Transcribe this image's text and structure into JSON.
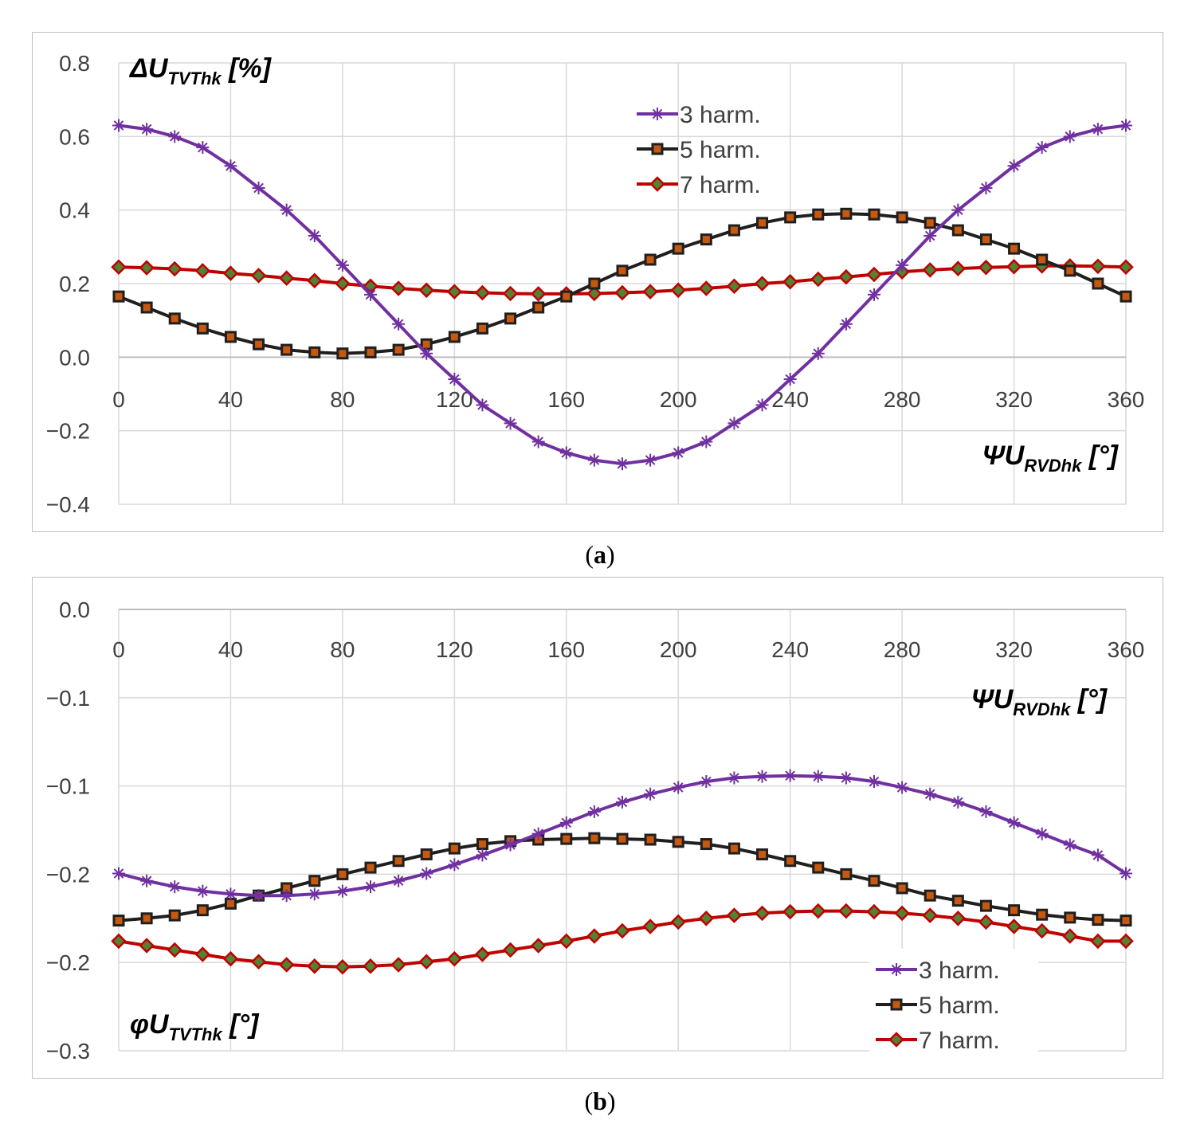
{
  "captions": {
    "a": "a",
    "b": "b"
  },
  "colors": {
    "h3": "#7030a0",
    "h5": "#1f1f1f",
    "h5_fill": "#c65911",
    "h7": "#c00000",
    "h7_fill": "#548235",
    "grid": "#d9d9d9"
  },
  "chart_data": [
    {
      "id": "a",
      "type": "line",
      "title": "",
      "ylabel_main": "ΔU",
      "ylabel_sub": "TVThk",
      "ylabel_unit": " [%]",
      "xlabel_main": "ΨU",
      "xlabel_sub": "RVDhk",
      "xlabel_unit": " [°]",
      "xlim": [
        0,
        360
      ],
      "ylim": [
        -0.4,
        0.8
      ],
      "x_ticks": [
        "0",
        "40",
        "80",
        "120",
        "160",
        "200",
        "240",
        "280",
        "320",
        "360"
      ],
      "y_ticks": [
        "0.8",
        "0.6",
        "0.4",
        "0.2",
        "0.0",
        "−0.2",
        "−0.4"
      ],
      "legend": [
        "3 harm.",
        "5 harm.",
        "7 harm."
      ],
      "legend_position": "top-center",
      "x": [
        0,
        10,
        20,
        30,
        40,
        50,
        60,
        70,
        80,
        90,
        100,
        110,
        120,
        130,
        140,
        150,
        160,
        170,
        180,
        190,
        200,
        210,
        220,
        230,
        240,
        250,
        260,
        270,
        280,
        290,
        300,
        310,
        320,
        330,
        340,
        350,
        360
      ],
      "series": [
        {
          "name": "3 harm.",
          "values": [
            0.63,
            0.62,
            0.6,
            0.57,
            0.52,
            0.46,
            0.4,
            0.33,
            0.25,
            0.17,
            0.09,
            0.01,
            -0.06,
            -0.13,
            -0.18,
            -0.23,
            -0.26,
            -0.28,
            -0.29,
            -0.28,
            -0.26,
            -0.23,
            -0.18,
            -0.13,
            -0.06,
            0.01,
            0.09,
            0.17,
            0.25,
            0.33,
            0.4,
            0.46,
            0.52,
            0.57,
            0.6,
            0.62,
            0.63
          ]
        },
        {
          "name": "5 harm.",
          "values": [
            0.165,
            0.135,
            0.105,
            0.078,
            0.055,
            0.035,
            0.02,
            0.013,
            0.01,
            0.013,
            0.02,
            0.035,
            0.055,
            0.078,
            0.105,
            0.135,
            0.165,
            0.2,
            0.235,
            0.265,
            0.295,
            0.32,
            0.345,
            0.365,
            0.38,
            0.388,
            0.39,
            0.388,
            0.38,
            0.365,
            0.345,
            0.32,
            0.295,
            0.265,
            0.235,
            0.2,
            0.165
          ]
        },
        {
          "name": "7 harm.",
          "values": [
            0.245,
            0.243,
            0.24,
            0.235,
            0.228,
            0.222,
            0.215,
            0.208,
            0.2,
            0.193,
            0.187,
            0.182,
            0.178,
            0.175,
            0.173,
            0.172,
            0.172,
            0.173,
            0.175,
            0.178,
            0.182,
            0.187,
            0.193,
            0.2,
            0.205,
            0.212,
            0.218,
            0.225,
            0.232,
            0.237,
            0.241,
            0.244,
            0.246,
            0.248,
            0.248,
            0.247,
            0.245
          ]
        }
      ]
    },
    {
      "id": "b",
      "type": "line",
      "title": "",
      "ylabel_main": "φU",
      "ylabel_sub": "TVThk",
      "ylabel_unit": " [°]",
      "xlabel_main": "ΨU",
      "xlabel_sub": "RVDhk",
      "xlabel_unit": " [°]",
      "xlim": [
        0,
        360
      ],
      "ylim": [
        -0.3,
        0.0
      ],
      "x_ticks": [
        "0",
        "40",
        "80",
        "120",
        "160",
        "200",
        "240",
        "280",
        "320",
        "360"
      ],
      "y_ticks": [
        "0.0",
        "−0.1",
        "−0.1",
        "−0.2",
        "−0.2",
        "−0.3"
      ],
      "legend": [
        "3 harm.",
        "5 harm.",
        "7 harm."
      ],
      "legend_position": "bottom-right",
      "x": [
        0,
        10,
        20,
        30,
        40,
        50,
        60,
        70,
        80,
        90,
        100,
        110,
        120,
        130,
        140,
        150,
        160,
        170,
        180,
        190,
        200,
        210,
        220,
        230,
        240,
        250,
        260,
        270,
        280,
        290,
        300,
        310,
        320,
        330,
        340,
        350,
        360
      ],
      "series": [
        {
          "name": "3 harm.",
          "values": [
            -0.1795,
            -0.1845,
            -0.1885,
            -0.1915,
            -0.1935,
            -0.1945,
            -0.1945,
            -0.1935,
            -0.1915,
            -0.1885,
            -0.1845,
            -0.1795,
            -0.1735,
            -0.167,
            -0.16,
            -0.1525,
            -0.145,
            -0.1375,
            -0.131,
            -0.1255,
            -0.121,
            -0.117,
            -0.1145,
            -0.1135,
            -0.113,
            -0.1135,
            -0.1145,
            -0.117,
            -0.121,
            -0.1255,
            -0.131,
            -0.1375,
            -0.145,
            -0.1525,
            -0.16,
            -0.167,
            -0.1795
          ]
        },
        {
          "name": "5 harm.",
          "values": [
            -0.2115,
            -0.21,
            -0.208,
            -0.2045,
            -0.2,
            -0.1945,
            -0.1895,
            -0.1845,
            -0.18,
            -0.1755,
            -0.171,
            -0.1665,
            -0.1625,
            -0.1595,
            -0.1575,
            -0.1565,
            -0.156,
            -0.1555,
            -0.156,
            -0.1565,
            -0.158,
            -0.1595,
            -0.1625,
            -0.1665,
            -0.171,
            -0.1755,
            -0.18,
            -0.1845,
            -0.1895,
            -0.1945,
            -0.198,
            -0.2015,
            -0.2045,
            -0.2075,
            -0.2095,
            -0.211,
            -0.2115
          ]
        },
        {
          "name": "7 harm.",
          "values": [
            -0.2255,
            -0.2285,
            -0.2315,
            -0.2345,
            -0.2375,
            -0.2395,
            -0.2415,
            -0.2425,
            -0.243,
            -0.2425,
            -0.2415,
            -0.2395,
            -0.2375,
            -0.2345,
            -0.2315,
            -0.2285,
            -0.2255,
            -0.222,
            -0.2185,
            -0.2155,
            -0.2125,
            -0.21,
            -0.208,
            -0.2065,
            -0.2055,
            -0.205,
            -0.205,
            -0.2055,
            -0.2065,
            -0.208,
            -0.21,
            -0.2125,
            -0.2155,
            -0.2185,
            -0.222,
            -0.2255,
            -0.2255
          ]
        }
      ]
    }
  ]
}
